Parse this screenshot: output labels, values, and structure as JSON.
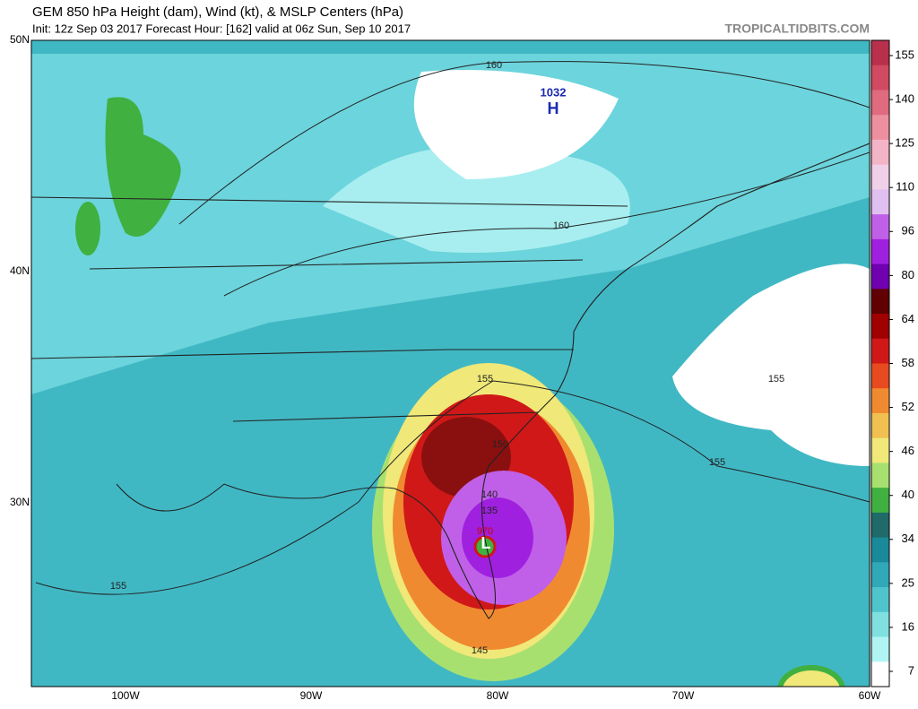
{
  "header": {
    "title": "GEM 850 hPa Height (dam), Wind (kt), & MSLP Centers (hPa)",
    "subtitle": "Init: 12z Sep 03 2017   Forecast Hour: [162]   valid at 06z Sun, Sep 10 2017",
    "watermark": "TROPICALTIDBITS.COM"
  },
  "axes": {
    "latitude_labels": [
      "50N",
      "40N",
      "30N"
    ],
    "longitude_labels": [
      "100W",
      "90W",
      "80W",
      "70W",
      "60W"
    ]
  },
  "colorbar": {
    "labels": [
      "155",
      "140",
      "125",
      "110",
      "96",
      "80",
      "64",
      "58",
      "52",
      "46",
      "40",
      "34",
      "25",
      "16",
      "7"
    ],
    "colors": [
      "#b8304c",
      "#d04a62",
      "#e06a7e",
      "#ec90a0",
      "#f4b4c8",
      "#f0d0e8",
      "#e0c0f0",
      "#c060e8",
      "#a020e0",
      "#7000b0",
      "#600000",
      "#a00000",
      "#d01818",
      "#e84a20",
      "#f08a30",
      "#f0c050",
      "#f0e878",
      "#a8e070",
      "#40b040",
      "#206a6a",
      "#1a8a9a",
      "#30a8b8",
      "#50c4cc",
      "#80e0e0",
      "#b0f4f4",
      "#ffffff"
    ]
  },
  "map": {
    "labels": [
      "160",
      "160",
      "155",
      "155",
      "155",
      "155",
      "150",
      "140",
      "135",
      "145",
      "970",
      "1032",
      "H",
      "L"
    ]
  }
}
